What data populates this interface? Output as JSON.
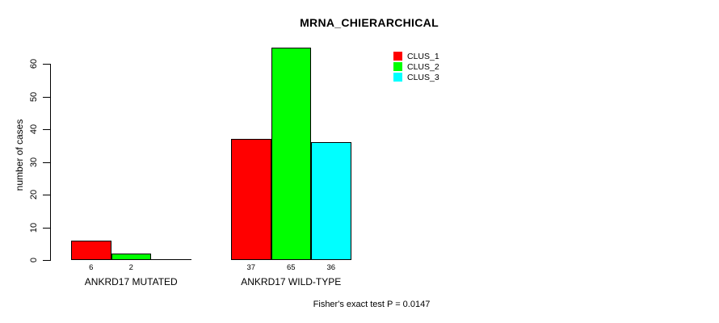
{
  "chart_data": {
    "type": "bar",
    "title": "MRNA_CHIERARCHICAL",
    "xlabel": "",
    "ylabel": "number of cases",
    "categories": [
      "ANKRD17 MUTATED",
      "ANKRD17 WILD-TYPE"
    ],
    "series": [
      {
        "name": "CLUS_1",
        "color": "#ff0000",
        "values": [
          6,
          37
        ]
      },
      {
        "name": "CLUS_2",
        "color": "#00ff00",
        "values": [
          2,
          65
        ]
      },
      {
        "name": "CLUS_3",
        "color": "#00ffff",
        "values": [
          0,
          36
        ]
      }
    ],
    "bar_value_labels": [
      [
        "6",
        "2",
        ""
      ],
      [
        "37",
        "65",
        "36"
      ]
    ],
    "yticks": [
      "0",
      "10",
      "20",
      "30",
      "40",
      "50",
      "60"
    ],
    "ylim": [
      0,
      65
    ],
    "grid": false,
    "legend_position": "top-right",
    "annotation": "Fisher's exact test P = 0.0147"
  }
}
